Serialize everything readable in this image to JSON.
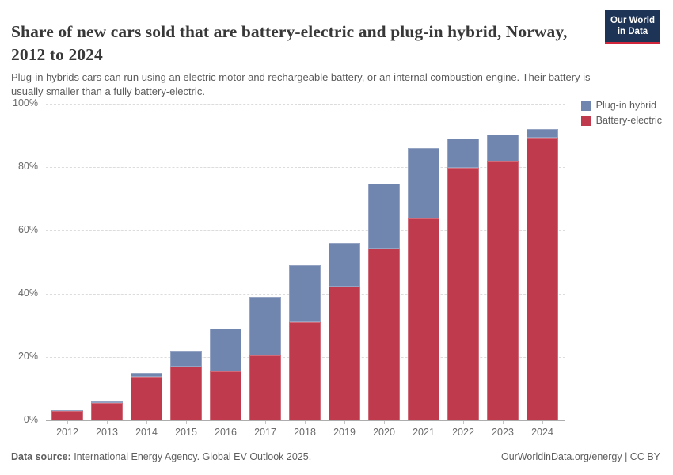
{
  "header": {
    "title": "Share of new cars sold that are battery-electric and plug-in hybrid, Norway, 2012 to 2024",
    "subtitle": "Plug-in hybrids cars can run using an electric motor and rechargeable battery, or an internal combustion engine. Their battery is usually smaller than a fully battery-electric.",
    "logo": {
      "line1": "Our World",
      "line2": "in Data",
      "bg_color": "#1d3456",
      "accent_color": "#d0253a"
    }
  },
  "footer": {
    "source_label": "Data source:",
    "source_text": " International Energy Agency. Global EV Outlook 2025.",
    "attribution": "OurWorldinData.org/energy | CC BY"
  },
  "chart_data": {
    "type": "bar",
    "stacked": true,
    "title": "Share of new cars sold that are battery-electric and plug-in hybrid, Norway, 2012 to 2024",
    "xlabel": "",
    "ylabel": "",
    "categories": [
      "2012",
      "2013",
      "2014",
      "2015",
      "2016",
      "2017",
      "2018",
      "2019",
      "2020",
      "2021",
      "2022",
      "2023",
      "2024"
    ],
    "series": [
      {
        "name": "Plug-in hybrid",
        "color": "#7086ae",
        "values": [
          0.3,
          0.4,
          1.4,
          5.0,
          13.6,
          18.4,
          18.0,
          13.6,
          20.5,
          22.2,
          9.3,
          8.4,
          2.8
        ]
      },
      {
        "name": "Battery-electric",
        "color": "#c03a4e",
        "values": [
          3.0,
          5.5,
          13.7,
          17.0,
          15.4,
          20.5,
          31.0,
          42.3,
          54.3,
          63.7,
          79.8,
          81.8,
          89.3
        ]
      }
    ],
    "stack_bottom_series": "Battery-electric",
    "ylim": [
      0,
      100
    ],
    "yticks": [
      0,
      20,
      40,
      60,
      80,
      100
    ],
    "ytick_format": "%",
    "grid": "horizontal-dashed",
    "legend_position": "top-right",
    "colors": {
      "gridline": "#dcdcdc",
      "axis_line": "#adadad",
      "tick_text": "#6b6b6b"
    }
  }
}
